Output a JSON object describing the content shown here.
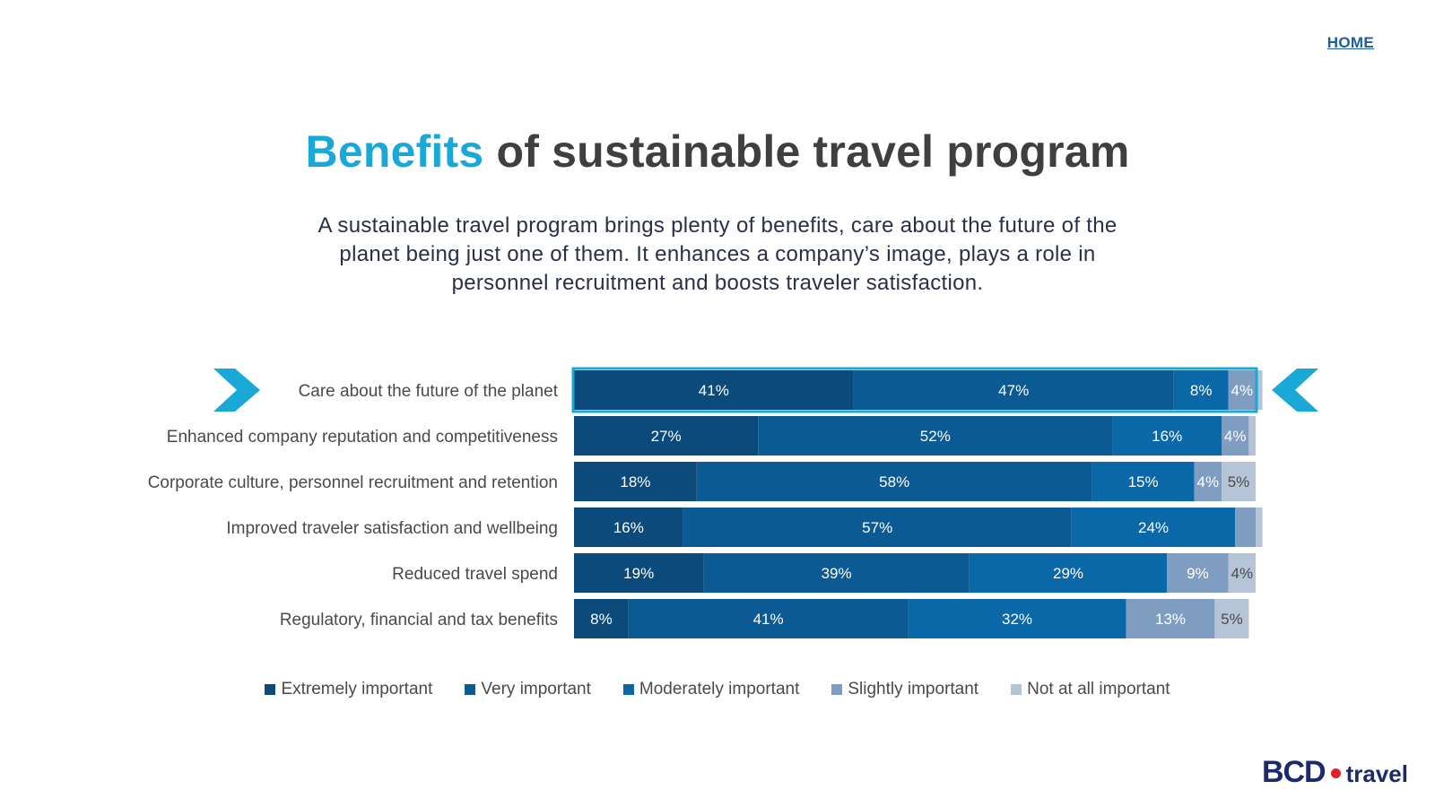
{
  "nav": {
    "home_label": "HOME"
  },
  "title": {
    "accent": "Benefits",
    "rest": " of sustainable travel program"
  },
  "subtitle": "A sustainable travel program brings plenty of benefits, care about the future of the planet being just one of them. It enhances a company’s image, plays a role in personnel recruitment and boosts traveler satisfaction.",
  "chart_data": {
    "type": "bar",
    "orientation": "horizontal",
    "stacked": true,
    "title": "",
    "xlabel": "",
    "ylabel": "",
    "xlim": [
      0,
      100
    ],
    "categories": [
      "Care about the future of the planet",
      "Enhanced company reputation and competitiveness",
      "Corporate culture, personnel recruitment and retention",
      "Improved traveler satisfaction and wellbeing",
      "Reduced travel spend",
      "Regulatory, financial and tax benefits"
    ],
    "highlighted_category": "Care about the future of the planet",
    "series": [
      {
        "name": "Extremely important",
        "color": "#0b4a7a",
        "values": [
          41,
          27,
          18,
          16,
          19,
          8
        ],
        "labels": [
          "41%",
          "27%",
          "18%",
          "16%",
          "19%",
          "8%"
        ]
      },
      {
        "name": "Very important",
        "color": "#0b5a94",
        "values": [
          47,
          52,
          58,
          57,
          39,
          41
        ],
        "labels": [
          "47%",
          "52%",
          "58%",
          "57%",
          "39%",
          "41%"
        ]
      },
      {
        "name": "Moderately important",
        "color": "#0a67a8",
        "values": [
          8,
          16,
          15,
          24,
          29,
          32
        ],
        "labels": [
          "8%",
          "16%",
          "15%",
          "24%",
          "29%",
          "32%"
        ]
      },
      {
        "name": "Slightly important",
        "color": "#7f9dc0",
        "values": [
          4,
          4,
          4,
          3,
          9,
          13
        ],
        "labels": [
          "4%",
          "4%",
          "4%",
          "",
          "9%",
          "13%"
        ]
      },
      {
        "name": "Not at all important",
        "color": "#b6c4d8",
        "values": [
          1,
          1,
          5,
          1,
          4,
          5
        ],
        "labels": [
          "",
          "",
          "5%",
          "",
          "4%",
          "5%"
        ]
      }
    ],
    "legend_position": "bottom"
  },
  "colors": {
    "accent": "#1aa8d6",
    "highlight_border": "#1aa8d6",
    "arrow": "#1aa8d6"
  },
  "logo": {
    "brand": "BCD",
    "product": "travel"
  }
}
